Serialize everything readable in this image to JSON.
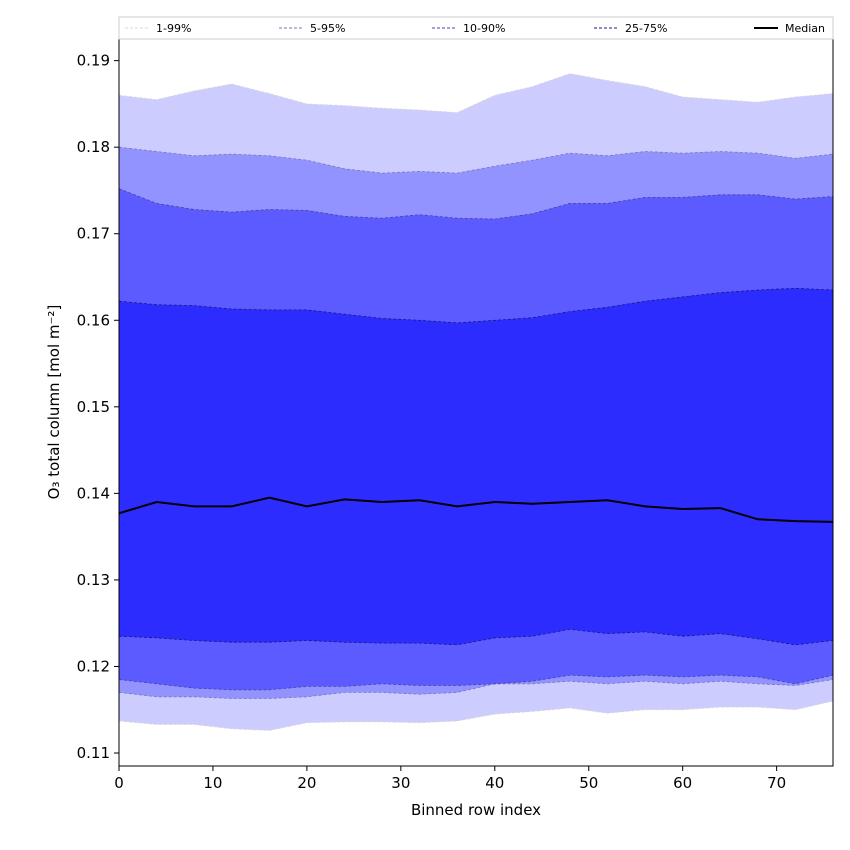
{
  "chart_data": {
    "type": "area",
    "xlabel": "Binned row index",
    "ylabel": "O₃ total column [mol m⁻²]",
    "xlim": [
      0,
      76
    ],
    "ylim": [
      0.1085,
      0.1925
    ],
    "xticks": [
      0,
      10,
      20,
      30,
      40,
      50,
      60,
      70
    ],
    "yticks": [
      0.11,
      0.12,
      0.13,
      0.14,
      0.15,
      0.16,
      0.17,
      0.18,
      0.19
    ],
    "legend_position": "top",
    "x": [
      0,
      4,
      8,
      12,
      16,
      20,
      24,
      28,
      32,
      36,
      40,
      44,
      48,
      52,
      56,
      60,
      64,
      68,
      72,
      76
    ],
    "bands": [
      {
        "name": "1-99%",
        "fill": "#ccccff",
        "line_color": "#d8d8d8",
        "lower": [
          0.1137,
          0.1133,
          0.1133,
          0.1128,
          0.1126,
          0.1135,
          0.1136,
          0.1136,
          0.1135,
          0.1137,
          0.1145,
          0.1148,
          0.1152,
          0.1146,
          0.115,
          0.115,
          0.1153,
          0.1153,
          0.115,
          0.116
        ],
        "upper": [
          0.186,
          0.1855,
          0.1865,
          0.1873,
          0.1862,
          0.185,
          0.1848,
          0.1845,
          0.1843,
          0.184,
          0.186,
          0.187,
          0.1885,
          0.1877,
          0.187,
          0.1858,
          0.1855,
          0.1852,
          0.1858,
          0.1862
        ]
      },
      {
        "name": "5-95%",
        "fill": "#9393ff",
        "line_color": "#7777bb",
        "lower": [
          0.117,
          0.1165,
          0.1165,
          0.1163,
          0.1163,
          0.1165,
          0.117,
          0.117,
          0.1168,
          0.117,
          0.118,
          0.118,
          0.1183,
          0.118,
          0.1183,
          0.118,
          0.1183,
          0.118,
          0.1178,
          0.1185
        ],
        "upper": [
          0.18,
          0.1795,
          0.179,
          0.1792,
          0.179,
          0.1785,
          0.1775,
          0.177,
          0.1772,
          0.177,
          0.1778,
          0.1785,
          0.1793,
          0.179,
          0.1795,
          0.1793,
          0.1795,
          0.1793,
          0.1787,
          0.1792
        ]
      },
      {
        "name": "10-90%",
        "fill": "#5b5bff",
        "line_color": "#4444aa",
        "lower": [
          0.1185,
          0.118,
          0.1175,
          0.1173,
          0.1173,
          0.1177,
          0.1177,
          0.118,
          0.1178,
          0.1178,
          0.118,
          0.1183,
          0.119,
          0.1188,
          0.119,
          0.1188,
          0.119,
          0.1188,
          0.118,
          0.119
        ],
        "upper": [
          0.1752,
          0.1735,
          0.1728,
          0.1725,
          0.1728,
          0.1727,
          0.172,
          0.1718,
          0.1722,
          0.1718,
          0.1717,
          0.1723,
          0.1735,
          0.1735,
          0.1742,
          0.1742,
          0.1745,
          0.1745,
          0.174,
          0.1743
        ]
      },
      {
        "name": "25-75%",
        "fill": "#2c2cff",
        "line_color": "#1a1a80",
        "lower": [
          0.1235,
          0.1233,
          0.123,
          0.1228,
          0.1228,
          0.123,
          0.1228,
          0.1227,
          0.1227,
          0.1225,
          0.1233,
          0.1235,
          0.1243,
          0.1238,
          0.124,
          0.1235,
          0.1238,
          0.1232,
          0.1225,
          0.123
        ],
        "upper": [
          0.1622,
          0.1618,
          0.1617,
          0.1613,
          0.1612,
          0.1612,
          0.1607,
          0.1602,
          0.16,
          0.1597,
          0.16,
          0.1603,
          0.161,
          0.1615,
          0.1622,
          0.1627,
          0.1632,
          0.1635,
          0.1637,
          0.1635
        ]
      }
    ],
    "median": {
      "name": "Median",
      "color": "#000000",
      "values": [
        0.1377,
        0.139,
        0.1385,
        0.1385,
        0.1395,
        0.1385,
        0.1393,
        0.139,
        0.1392,
        0.1385,
        0.139,
        0.1388,
        0.139,
        0.1392,
        0.1385,
        0.1382,
        0.1383,
        0.137,
        0.1368,
        0.1367
      ]
    }
  }
}
